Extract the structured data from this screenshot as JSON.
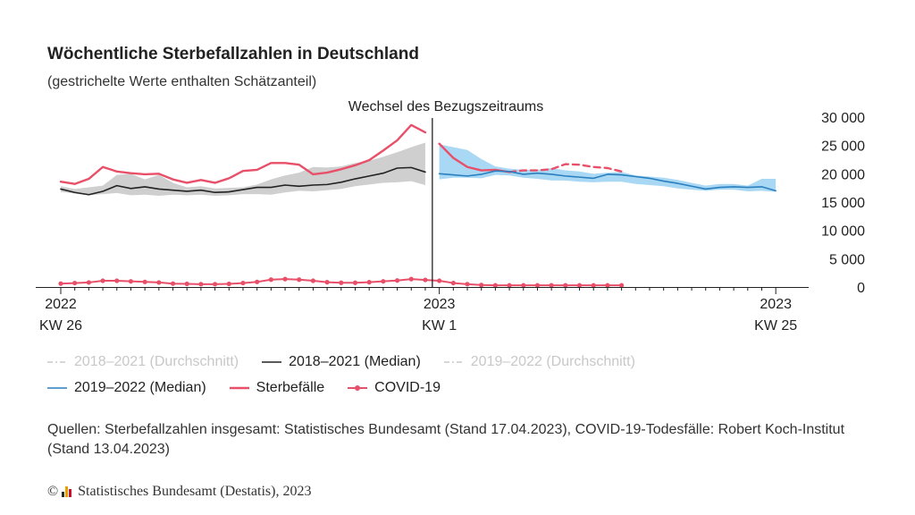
{
  "title": "Wöchentliche Sterbefallzahlen in Deutschland",
  "subtitle": "(gestrichelte Werte enthalten Schätzanteil)",
  "annotation": "Wechsel des Bezugszeitraums",
  "legend": {
    "row1": [
      "2018–2021 (Durchschnitt)",
      "2018–2021 (Median)",
      "2019–2022 (Durchschnitt)"
    ],
    "row2": [
      "2019–2022 (Median)",
      "Sterbefälle",
      "COVID-19"
    ]
  },
  "source": "Quellen: Sterbefallzahlen insgesamt: Statistisches Bundesamt (Stand 17.04.2023), COVID-19-Todesfälle: Robert Koch-Institut (Stand 13.04.2023)",
  "copyright": {
    "symbol": "©",
    "text": "Statistisches Bundesamt (Destatis), 2023"
  },
  "colors": {
    "deaths": "#e8506a",
    "median_2018_2021": "#222222",
    "median_2019_2022": "#2a7fbf",
    "band_2018_2021": "#cfcfcf",
    "band_2019_2022": "#a9d8f5",
    "muted_legend": "#c8c8c8"
  },
  "chart_data": {
    "type": "line",
    "x_ticks": [
      {
        "year": "2022",
        "week": "KW 26",
        "index": 0
      },
      {
        "year": "2023",
        "week": "KW 1",
        "index": 27
      },
      {
        "year": "2023",
        "week": "KW 25",
        "index": 51
      }
    ],
    "period_change_index": 27,
    "y_ticks": [
      "30 000",
      "25 000",
      "20 000",
      "15 000",
      "10 000",
      "5 000",
      "0"
    ],
    "ylim": [
      0,
      30000
    ],
    "series": [
      {
        "name": "2018–2021 (Median)",
        "x": [
          0,
          1,
          2,
          3,
          4,
          5,
          6,
          7,
          8,
          9,
          10,
          11,
          12,
          13,
          14,
          15,
          16,
          17,
          18,
          19,
          20,
          21,
          22,
          23,
          24,
          25,
          26
        ],
        "values": [
          17300,
          16700,
          16300,
          16900,
          17900,
          17400,
          17700,
          17300,
          17100,
          16900,
          17100,
          16700,
          16800,
          17200,
          17600,
          17600,
          18000,
          17800,
          18000,
          18100,
          18500,
          19100,
          19600,
          20100,
          21000,
          21100,
          20300
        ]
      },
      {
        "name": "Sterbefälle",
        "x": [
          0,
          1,
          2,
          3,
          4,
          5,
          6,
          7,
          8,
          9,
          10,
          11,
          12,
          13,
          14,
          15,
          16,
          17,
          18,
          19,
          20,
          21,
          22,
          23,
          24,
          25,
          26
        ],
        "values": [
          18600,
          18200,
          19100,
          21200,
          20400,
          20100,
          19900,
          20000,
          19000,
          18400,
          18900,
          18400,
          19200,
          20500,
          20700,
          21900,
          21900,
          21600,
          19900,
          20200,
          20800,
          21500,
          22400,
          24100,
          25900,
          28600,
          27300
        ]
      },
      {
        "name": "Sterbefälle",
        "x": [
          27,
          28,
          29,
          30,
          31,
          32
        ],
        "values": [
          25300,
          22800,
          21200,
          20600,
          20700,
          20300
        ]
      },
      {
        "name": "Sterbefälle",
        "x": [
          32,
          33,
          34,
          35,
          36,
          37,
          38,
          39,
          40
        ],
        "values": [
          20300,
          20600,
          20600,
          20800,
          21700,
          21600,
          21200,
          21000,
          20400
        ]
      },
      {
        "name": "2019–2022 (Median)",
        "x": [
          27,
          28,
          29,
          30,
          31,
          32,
          33,
          34,
          35,
          36,
          37,
          38,
          39,
          40,
          41,
          42,
          43,
          44,
          45,
          46,
          47,
          48,
          49,
          50,
          51
        ],
        "values": [
          20000,
          19800,
          19600,
          19900,
          20500,
          20400,
          19900,
          20100,
          19900,
          19600,
          19400,
          19200,
          19900,
          19800,
          19500,
          19200,
          18700,
          18300,
          17800,
          17300,
          17600,
          17700,
          17600,
          17700,
          17000
        ]
      },
      {
        "name": "COVID-19",
        "x": [
          0,
          1,
          2,
          3,
          4,
          5,
          6,
          7,
          8,
          9,
          10,
          11,
          12,
          13,
          14,
          15,
          16,
          17,
          18,
          19,
          20,
          21,
          22,
          23,
          24,
          25,
          26,
          27,
          28,
          29,
          30,
          31,
          32,
          33,
          34,
          35,
          36,
          37,
          38,
          39,
          40
        ],
        "values": [
          600,
          700,
          800,
          1100,
          1100,
          1000,
          900,
          800,
          600,
          550,
          500,
          500,
          550,
          700,
          900,
          1300,
          1400,
          1300,
          1100,
          850,
          750,
          750,
          850,
          1000,
          1150,
          1400,
          1250,
          1100,
          700,
          500,
          350,
          300,
          300,
          300,
          300,
          300,
          300,
          300,
          300,
          300,
          300
        ]
      }
    ],
    "bands": [
      {
        "name": "2018–2021",
        "x": [
          0,
          1,
          2,
          3,
          4,
          5,
          6,
          7,
          8,
          9,
          10,
          11,
          12,
          13,
          14,
          15,
          16,
          17,
          18,
          19,
          20,
          21,
          22,
          23,
          24,
          25,
          26
        ],
        "low": [
          16800,
          16500,
          16200,
          16400,
          16600,
          16200,
          16300,
          16100,
          16300,
          16200,
          16300,
          16100,
          16200,
          16400,
          16400,
          16300,
          16700,
          17000,
          16900,
          17100,
          17300,
          17800,
          18100,
          18400,
          18500,
          18700,
          18000
        ],
        "high": [
          17800,
          17300,
          17600,
          17900,
          19800,
          20000,
          19000,
          19800,
          18400,
          17600,
          17800,
          17400,
          17500,
          17600,
          18100,
          19000,
          19700,
          20200,
          21200,
          21100,
          21300,
          21900,
          22300,
          23000,
          23800,
          24700,
          25500
        ]
      },
      {
        "name": "2019–2022",
        "x": [
          27,
          28,
          29,
          30,
          31,
          32,
          33,
          34,
          35,
          36,
          37,
          38,
          39,
          40,
          41,
          42,
          43,
          44,
          45,
          46,
          47,
          48,
          49,
          50,
          51
        ],
        "low": [
          19000,
          19300,
          19300,
          19200,
          19800,
          19700,
          19300,
          19100,
          18800,
          18800,
          18600,
          18500,
          18600,
          18600,
          18200,
          18000,
          17800,
          17400,
          17200,
          17000,
          17200,
          17200,
          16900,
          17000,
          16800
        ],
        "high": [
          25200,
          24700,
          24200,
          22600,
          21300,
          20900,
          20700,
          20700,
          21000,
          20600,
          20400,
          20000,
          20200,
          20300,
          19700,
          19500,
          19300,
          18900,
          18400,
          17900,
          18200,
          18200,
          17900,
          19100,
          19100
        ]
      }
    ]
  }
}
